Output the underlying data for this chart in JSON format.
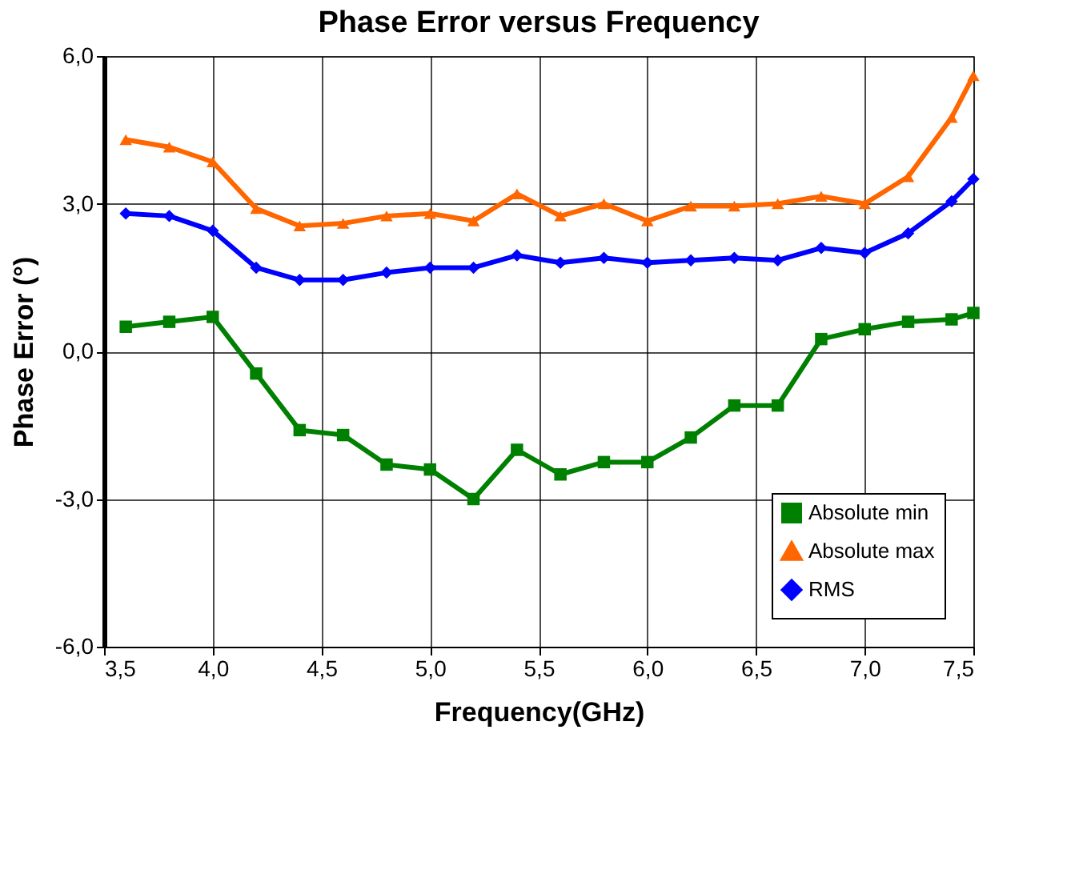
{
  "chart_data": {
    "type": "line",
    "title": "Phase Error versus Frequency",
    "xlabel": "Frequency(GHz)",
    "ylabel": "Phase Error (°)",
    "x": [
      3.6,
      3.8,
      4.0,
      4.2,
      4.4,
      4.6,
      4.8,
      5.0,
      5.2,
      5.4,
      5.6,
      5.8,
      6.0,
      6.2,
      6.4,
      6.6,
      6.8,
      7.0,
      7.2,
      7.4,
      7.5
    ],
    "series": [
      {
        "name": "Absolute min",
        "color": "#008000",
        "marker": "square",
        "values": [
          0.5,
          0.6,
          0.7,
          -0.45,
          -1.6,
          -1.7,
          -2.3,
          -2.4,
          -3.0,
          -2.0,
          -2.5,
          -2.25,
          -2.25,
          -1.75,
          -1.1,
          -1.1,
          0.25,
          0.45,
          0.6,
          0.65,
          0.78
        ]
      },
      {
        "name": "Absolute max",
        "color": "#ff6600",
        "marker": "triangle",
        "values": [
          4.3,
          4.15,
          3.85,
          2.9,
          2.55,
          2.6,
          2.75,
          2.8,
          2.65,
          3.2,
          2.75,
          3.0,
          2.65,
          2.95,
          2.95,
          3.0,
          3.15,
          3.0,
          3.55,
          4.75,
          5.6
        ]
      },
      {
        "name": "RMS",
        "color": "#0000ff",
        "marker": "diamond",
        "values": [
          2.8,
          2.75,
          2.45,
          1.7,
          1.45,
          1.45,
          1.6,
          1.7,
          1.7,
          1.95,
          1.8,
          1.9,
          1.8,
          1.85,
          1.9,
          1.85,
          2.1,
          2.0,
          2.4,
          3.05,
          3.5
        ]
      }
    ],
    "xlim": [
      3.5,
      7.5
    ],
    "xticks": [
      {
        "value": 3.5,
        "label": "3,5"
      },
      {
        "value": 4.0,
        "label": "4,0"
      },
      {
        "value": 4.5,
        "label": "4,5"
      },
      {
        "value": 5.0,
        "label": "5,0"
      },
      {
        "value": 5.5,
        "label": "5,5"
      },
      {
        "value": 6.0,
        "label": "6,0"
      },
      {
        "value": 6.5,
        "label": "6,5"
      },
      {
        "value": 7.0,
        "label": "7,0"
      },
      {
        "value": 7.5,
        "label": "7,5"
      }
    ],
    "ylim": [
      -6.0,
      6.0
    ],
    "yticks": [
      {
        "value": -6.0,
        "label": "-6,0"
      },
      {
        "value": -3.0,
        "label": "-3,0"
      },
      {
        "value": 0.0,
        "label": "0,0"
      },
      {
        "value": 3.0,
        "label": "3,0"
      },
      {
        "value": 6.0,
        "label": "6,0"
      }
    ],
    "grid": true,
    "legend": "bottom right",
    "line_style": "solid"
  }
}
